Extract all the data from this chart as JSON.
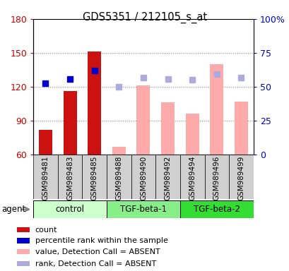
{
  "title": "GDS5351 / 212105_s_at",
  "samples": [
    "GSM989481",
    "GSM989483",
    "GSM989485",
    "GSM989488",
    "GSM989490",
    "GSM989492",
    "GSM989494",
    "GSM989496",
    "GSM989499"
  ],
  "groups": [
    {
      "name": "control",
      "indices": [
        0,
        1,
        2
      ],
      "color": "#ccffcc"
    },
    {
      "name": "TGF-beta-1",
      "indices": [
        3,
        4,
        5
      ],
      "color": "#88ee88"
    },
    {
      "name": "TGF-beta-2",
      "indices": [
        6,
        7,
        8
      ],
      "color": "#33dd33"
    }
  ],
  "ylim_left": [
    60,
    180
  ],
  "ylim_right": [
    0,
    100
  ],
  "yticks_left": [
    60,
    90,
    120,
    150,
    180
  ],
  "ytick_labels_left": [
    "60",
    "90",
    "120",
    "150",
    "180"
  ],
  "yticks_right": [
    0,
    25,
    50,
    75,
    100
  ],
  "ytick_labels_right": [
    "0",
    "25",
    "50",
    "75",
    "100%"
  ],
  "bar_present": [
    true,
    true,
    true,
    false,
    false,
    false,
    false,
    false,
    false
  ],
  "bar_values": [
    82,
    116,
    151,
    0,
    0,
    0,
    0,
    0,
    0
  ],
  "bar_color_present": "#cc1111",
  "absent_bar_values": [
    0,
    0,
    0,
    67,
    121,
    106,
    96,
    140,
    107
  ],
  "absent_bar_color": "#ffaaaa",
  "blue_dot_present": [
    true,
    true,
    true,
    false,
    false,
    false,
    false,
    false,
    false
  ],
  "blue_dot_values": [
    123,
    127,
    134,
    0,
    0,
    0,
    0,
    0,
    0
  ],
  "blue_dot_color": "#0000cc",
  "absent_rank_present": [
    false,
    false,
    false,
    true,
    true,
    true,
    true,
    true,
    true
  ],
  "absent_rank_values": [
    0,
    0,
    0,
    120,
    128,
    127,
    126,
    131,
    128
  ],
  "absent_rank_color": "#aaaadd",
  "legend_items": [
    {
      "color": "#cc1111",
      "label": "count"
    },
    {
      "color": "#0000cc",
      "label": "percentile rank within the sample"
    },
    {
      "color": "#ffaaaa",
      "label": "value, Detection Call = ABSENT"
    },
    {
      "color": "#aaaadd",
      "label": "rank, Detection Call = ABSENT"
    }
  ],
  "agent_label": "agent",
  "left_ycolor": "#cc0000",
  "right_ycolor": "#0000cc",
  "grid_color": "#888888",
  "sample_box_color": "#d0d0d0",
  "bar_width": 0.55
}
